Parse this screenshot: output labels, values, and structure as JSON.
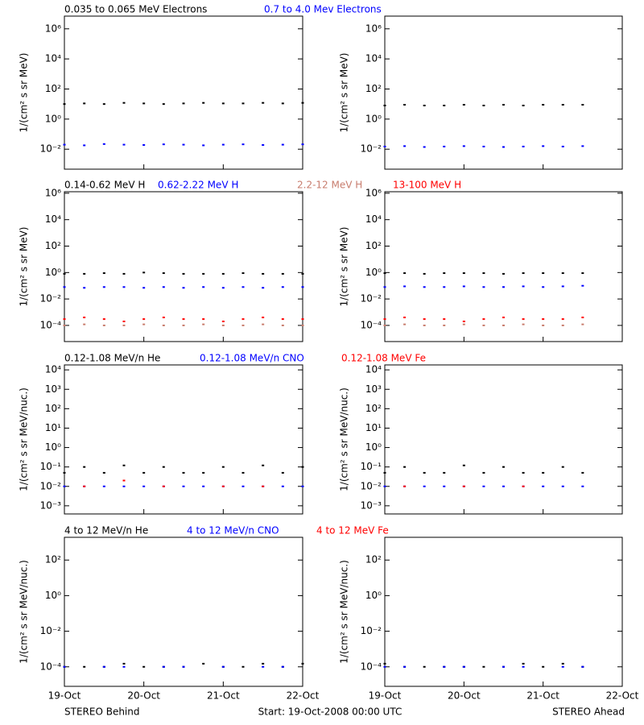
{
  "chart_data": [
    {
      "type": "scatter",
      "ylabel": "1/(cm² s sr MeV)",
      "log": true,
      "ylim": [
        0.00047,
        7000000
      ],
      "yticks": [
        {
          "value": 0.01,
          "label": "10⁻²"
        },
        {
          "value": 1,
          "label": "10⁰"
        },
        {
          "value": 100,
          "label": "10²"
        },
        {
          "value": 10000,
          "label": "10⁴"
        },
        {
          "value": 1000000,
          "label": "10⁶"
        }
      ],
      "x": [
        0,
        0.25,
        0.5,
        0.75,
        1,
        1.25,
        1.5,
        1.75,
        2,
        2.25,
        2.5,
        2.75,
        3
      ],
      "x_ahead": [
        0,
        0.25,
        0.5,
        0.75,
        1,
        1.25,
        1.5,
        1.75,
        2,
        2.25,
        2.5
      ],
      "series": [
        {
          "name": "0.035 to 0.065 MeV Electrons",
          "color": "#000000",
          "values": [
            10,
            11,
            10,
            12,
            11,
            10,
            11,
            12,
            11,
            11,
            12,
            11,
            12
          ],
          "values_ahead": [
            8,
            9,
            8,
            8,
            9,
            8,
            9,
            8,
            9,
            9,
            9
          ]
        },
        {
          "name": "0.7 to 4.0 Mev Electrons",
          "color": "#0000ff",
          "values": [
            0.02,
            0.018,
            0.022,
            0.02,
            0.019,
            0.021,
            0.02,
            0.018,
            0.02,
            0.021,
            0.019,
            0.02,
            0.021
          ],
          "values_ahead": [
            0.015,
            0.016,
            0.014,
            0.015,
            0.016,
            0.015,
            0.014,
            0.015,
            0.016,
            0.015,
            0.016
          ]
        }
      ]
    },
    {
      "type": "scatter",
      "ylabel": "1/(cm² s sr MeV)",
      "log": true,
      "ylim": [
        6e-06,
        1300000
      ],
      "yticks": [
        {
          "value": 0.0001,
          "label": "10⁻⁴"
        },
        {
          "value": 0.01,
          "label": "10⁻²"
        },
        {
          "value": 1,
          "label": "10⁰"
        },
        {
          "value": 100,
          "label": "10²"
        },
        {
          "value": 10000,
          "label": "10⁴"
        },
        {
          "value": 1000000,
          "label": "10⁶"
        }
      ],
      "x": [
        0,
        0.25,
        0.5,
        0.75,
        1,
        1.25,
        1.5,
        1.75,
        2,
        2.25,
        2.5,
        2.75,
        3
      ],
      "x_ahead": [
        0,
        0.25,
        0.5,
        0.75,
        1,
        1.25,
        1.5,
        1.75,
        2,
        2.25,
        2.5
      ],
      "series": [
        {
          "name": "0.14-0.62 MeV H",
          "color": "#000000",
          "values": [
            0.8,
            0.8,
            0.9,
            0.8,
            1,
            0.9,
            0.8,
            0.8,
            0.8,
            0.9,
            0.8,
            0.8,
            0.8
          ],
          "values_ahead": [
            0.9,
            0.9,
            0.8,
            0.9,
            0.9,
            0.9,
            0.8,
            0.9,
            0.9,
            0.9,
            0.9
          ]
        },
        {
          "name": "0.62-2.22 MeV H",
          "color": "#0000ff",
          "values": [
            0.08,
            0.07,
            0.08,
            0.08,
            0.07,
            0.08,
            0.07,
            0.08,
            0.07,
            0.08,
            0.07,
            0.08,
            0.08
          ],
          "values_ahead": [
            0.08,
            0.09,
            0.08,
            0.08,
            0.09,
            0.08,
            0.08,
            0.09,
            0.08,
            0.09,
            0.1
          ]
        },
        {
          "name": "2.2-12 MeV H",
          "color": "#c87d6e",
          "values": [
            0.0001,
            0.00012,
            0.0001,
            0.0001,
            0.00012,
            0.0001,
            0.0001,
            0.00012,
            0.0001,
            0.0001,
            0.00012,
            0.0001,
            0.0001
          ],
          "values_ahead": [
            0.0001,
            0.00012,
            0.0001,
            0.0001,
            0.00012,
            0.0001,
            0.0001,
            0.00012,
            0.0001,
            0.0001,
            0.00012
          ]
        },
        {
          "name": "13-100 MeV H",
          "color": "#ff0000",
          "values": [
            0.0003,
            0.0004,
            0.0003,
            0.0002,
            0.0003,
            0.0004,
            0.0003,
            0.0003,
            0.0002,
            0.0003,
            0.0004,
            0.0003,
            0.0003
          ],
          "values_ahead": [
            0.0003,
            0.0004,
            0.0003,
            0.0003,
            0.0002,
            0.0003,
            0.0004,
            0.0003,
            0.0003,
            0.0003,
            0.0004
          ]
        }
      ]
    },
    {
      "type": "scatter",
      "ylabel": "1/(cm² s sr MeV/nuc.)",
      "log": true,
      "ylim": [
        0.00038,
        18000
      ],
      "yticks": [
        {
          "value": 0.001,
          "label": "10⁻³"
        },
        {
          "value": 0.01,
          "label": "10⁻²"
        },
        {
          "value": 0.1,
          "label": "10⁻¹"
        },
        {
          "value": 1,
          "label": "10⁰"
        },
        {
          "value": 10,
          "label": "10¹"
        },
        {
          "value": 100,
          "label": "10²"
        },
        {
          "value": 1000,
          "label": "10³"
        },
        {
          "value": 10000,
          "label": "10⁴"
        }
      ],
      "x": [
        0,
        0.25,
        0.5,
        0.75,
        1,
        1.25,
        1.5,
        1.75,
        2,
        2.25,
        2.5,
        2.75,
        3
      ],
      "x_ahead": [
        0,
        0.25,
        0.5,
        0.75,
        1,
        1.25,
        1.5,
        1.75,
        2,
        2.25,
        2.5
      ],
      "series": [
        {
          "name": "0.12-1.08 MeV/n He",
          "color": "#000000",
          "values": [
            0.05,
            0.1,
            0.05,
            0.12,
            0.05,
            0.1,
            0.05,
            0.05,
            0.1,
            0.05,
            0.12,
            0.05,
            0.1
          ],
          "values_ahead": [
            0.05,
            0.1,
            0.05,
            0.05,
            0.12,
            0.05,
            0.1,
            0.05,
            0.05,
            0.1,
            0.05
          ]
        },
        {
          "name": "0.12-1.08 MeV/n CNO",
          "color": "#0000ff",
          "values": [
            0.01,
            0.01,
            0.01,
            0.01,
            0.01,
            0.01,
            0.01,
            0.01,
            0.01,
            0.01,
            0.01,
            0.01,
            0.01
          ],
          "values_ahead": [
            0.01,
            0.01,
            0.01,
            0.01,
            0.01,
            0.01,
            0.01,
            0.01,
            0.01,
            0.01,
            0.01
          ]
        },
        {
          "name": "0.12-1.08 MeV Fe",
          "color": "#ff0000",
          "values": [
            null,
            0.01,
            null,
            0.02,
            null,
            0.01,
            null,
            null,
            0.01,
            null,
            0.01,
            null,
            null
          ],
          "values_ahead": [
            null,
            0.01,
            null,
            null,
            0.01,
            null,
            null,
            0.01,
            null,
            null,
            null
          ]
        }
      ]
    },
    {
      "type": "scatter",
      "ylabel": "1/(cm² s sr MeV/nuc.)",
      "log": true,
      "ylim": [
        8e-06,
        1900
      ],
      "yticks": [
        {
          "value": 0.0001,
          "label": "10⁻⁴"
        },
        {
          "value": 0.01,
          "label": "10⁻²"
        },
        {
          "value": 1,
          "label": "10⁰"
        },
        {
          "value": 100,
          "label": "10²"
        }
      ],
      "x": [
        0,
        0.25,
        0.5,
        0.75,
        1,
        1.25,
        1.5,
        1.75,
        2,
        2.25,
        2.5,
        2.75,
        3
      ],
      "x_ahead": [
        0,
        0.25,
        0.5,
        0.75,
        1,
        1.25,
        1.5,
        1.75,
        2,
        2.25,
        2.5
      ],
      "series": [
        {
          "name": "4 to 12 MeV/n He",
          "color": "#000000",
          "values": [
            0.0001,
            0.0001,
            0.0001,
            0.00015,
            0.0001,
            0.0001,
            0.0001,
            0.00015,
            0.0001,
            0.0001,
            0.00015,
            0.0001,
            0.00015
          ],
          "values_ahead": [
            0.00015,
            0.0001,
            0.0001,
            0.0001,
            0.0001,
            0.0001,
            0.0001,
            0.00015,
            0.0001,
            0.00015,
            0.0001
          ]
        },
        {
          "name": "4 to 12 MeV/n CNO",
          "color": "#0000ff",
          "values": [
            0.0001,
            null,
            0.0001,
            0.0001,
            null,
            0.0001,
            0.0001,
            null,
            0.0001,
            null,
            0.0001,
            0.0001,
            null
          ],
          "values_ahead": [
            0.0001,
            0.0001,
            null,
            0.0001,
            0.0001,
            null,
            0.0001,
            0.0001,
            null,
            0.0001,
            0.0001
          ]
        },
        {
          "name": "4 to 12 MeV Fe",
          "color": "#ff0000",
          "values": [
            null,
            null,
            null,
            null,
            null,
            null,
            null,
            null,
            null,
            null,
            null,
            null,
            null
          ],
          "values_ahead": [
            null,
            null,
            null,
            null,
            null,
            null,
            null,
            null,
            null,
            null,
            null
          ]
        }
      ]
    }
  ],
  "x_axis": {
    "xlim": [
      0,
      3
    ],
    "xticks": [
      {
        "value": 0,
        "label": "19-Oct"
      },
      {
        "value": 1,
        "label": "20-Oct"
      },
      {
        "value": 2,
        "label": "21-Oct"
      },
      {
        "value": 3,
        "label": "22-Oct"
      }
    ]
  },
  "footer": {
    "left": "STEREO Behind",
    "center": "Start: 19-Oct-2008 00:00 UTC",
    "right": "STEREO Ahead"
  }
}
